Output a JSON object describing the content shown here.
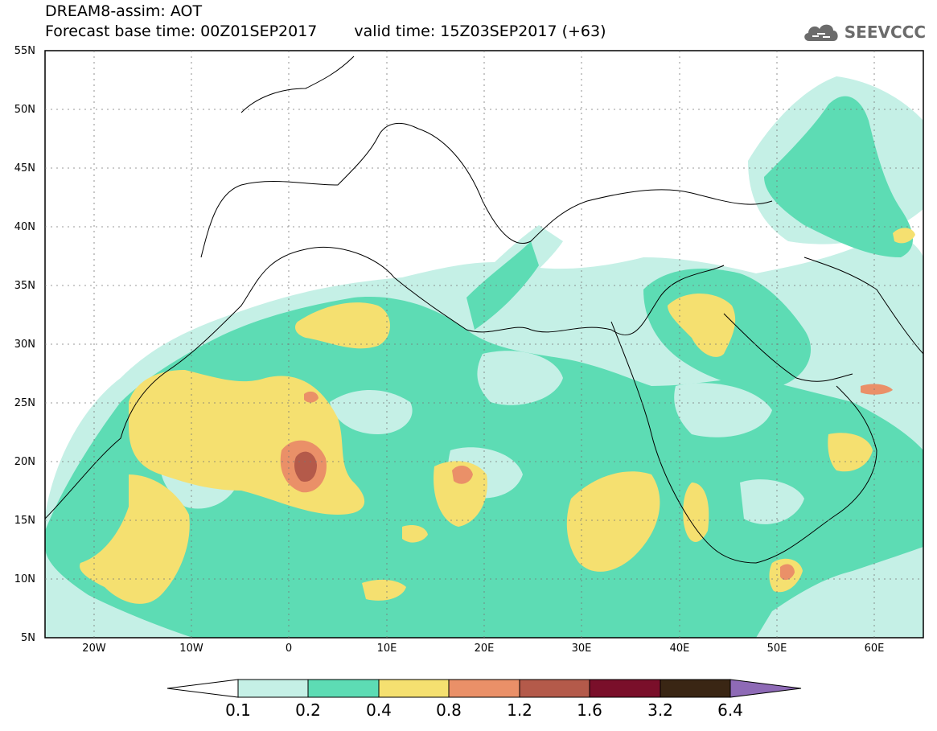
{
  "header": {
    "title": "DREAM8-assim: AOT",
    "base_time_label": "Forecast base time: 00Z01SEP2017",
    "valid_time_label": "valid time: 15Z03SEP2017 (+63)"
  },
  "logo": {
    "text": "SEEVCCC",
    "icon": "cloud-icon",
    "color": "#6b6b6b"
  },
  "map": {
    "lon_range": [
      -25,
      65
    ],
    "lat_range": [
      5,
      55
    ],
    "lat_ticks": [
      "5N",
      "10N",
      "15N",
      "20N",
      "25N",
      "30N",
      "35N",
      "40N",
      "45N",
      "50N",
      "55N"
    ],
    "lon_ticks": [
      "20W",
      "10W",
      "0",
      "10E",
      "20E",
      "30E",
      "40E",
      "50E",
      "60E"
    ],
    "gridlines": "dotted"
  },
  "colorbar": {
    "labels": [
      "0.1",
      "0.2",
      "0.4",
      "0.8",
      "1.2",
      "1.6",
      "3.2",
      "6.4"
    ],
    "colors": [
      "#ffffff",
      "#c5f0e6",
      "#5ddcb4",
      "#f5e070",
      "#ea9068",
      "#b45a4a",
      "#7a0f2a",
      "#3a2614",
      "#8e6ab6"
    ]
  }
}
